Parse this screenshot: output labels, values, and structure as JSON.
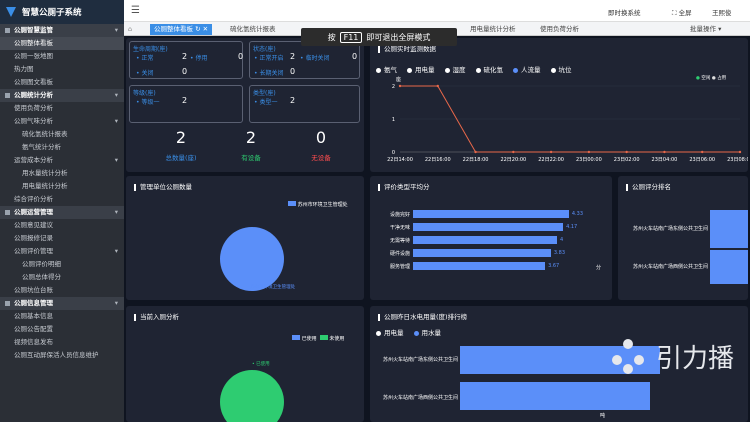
{
  "app": {
    "title": "智慧公厕子系统"
  },
  "sidebar": {
    "items": [
      {
        "label": "公厕智慧监管",
        "kind": "grp"
      },
      {
        "label": "公厕整体看板",
        "kind": "sub",
        "active": true
      },
      {
        "label": "公厕一张地图",
        "kind": "sub"
      },
      {
        "label": "热力图",
        "kind": "sub"
      },
      {
        "label": "公厕图文看板",
        "kind": "sub"
      },
      {
        "label": "公厕统计分析",
        "kind": "grp"
      },
      {
        "label": "使用负荷分析",
        "kind": "sub"
      },
      {
        "label": "公厕气味分析",
        "kind": "sub",
        "chev": true
      },
      {
        "label": "硫化氢统计报表",
        "kind": "l2"
      },
      {
        "label": "氨气统计分析",
        "kind": "l2"
      },
      {
        "label": "运营成本分析",
        "kind": "sub",
        "chev": true
      },
      {
        "label": "用水量统计分析",
        "kind": "l2"
      },
      {
        "label": "用电量统计分析",
        "kind": "l2"
      },
      {
        "label": "综合评价分析",
        "kind": "sub"
      },
      {
        "label": "公厕运营管理",
        "kind": "grp"
      },
      {
        "label": "公厕意见建议",
        "kind": "sub"
      },
      {
        "label": "公厕报修记录",
        "kind": "sub"
      },
      {
        "label": "公厕评价管理",
        "kind": "sub",
        "chev": true
      },
      {
        "label": "公厕评价明细",
        "kind": "l2"
      },
      {
        "label": "公厕总体得分",
        "kind": "l2"
      },
      {
        "label": "公厕坑位台账",
        "kind": "sub"
      },
      {
        "label": "公厕信息管理",
        "kind": "grp"
      },
      {
        "label": "公厕基本信息",
        "kind": "sub"
      },
      {
        "label": "公厕公告配置",
        "kind": "sub"
      },
      {
        "label": "视频信息发布",
        "kind": "sub"
      },
      {
        "label": "公厕互动屏保活人员信息维护",
        "kind": "sub"
      }
    ]
  },
  "topbar": {
    "system": "即时换系统",
    "fullscreen": "全屏",
    "user": "王熙俊"
  },
  "tabs": [
    {
      "label": "公厕整体看板",
      "active": true
    },
    {
      "label": "硫化氢统计报表"
    },
    {
      "label": "用电量统计分析"
    },
    {
      "label": "使用负荷分析"
    },
    {
      "label": "批量操作"
    }
  ],
  "fullscreen_tip": {
    "pre": "按",
    "key": "F11",
    "post": "即可退出全屏模式"
  },
  "status": {
    "lifecycle": {
      "title": "生命周期(座)",
      "normal_label": "正常",
      "normal": "2",
      "disabled_label": "停用",
      "disabled": "0",
      "closed_label": "关闭",
      "closed": "0"
    },
    "state": {
      "title": "状态(座)",
      "open_label": "正常开启",
      "open": "2",
      "temp_label": "临时关闭",
      "temp": "0",
      "long_label": "长期关闭",
      "long": "0"
    },
    "grade": {
      "title": "等级(座)",
      "g1_label": "等级一",
      "g1": "2"
    },
    "type": {
      "title": "类型(座)",
      "t1_label": "类型一",
      "t1": "2"
    },
    "totals": [
      {
        "value": "2",
        "label": "总数量(座)",
        "color": "#3a8ee6"
      },
      {
        "value": "2",
        "label": "有设备",
        "color": "#2ecc71"
      },
      {
        "value": "0",
        "label": "无设备",
        "color": "#ff4d4f"
      }
    ]
  },
  "panels": {
    "realtime": {
      "title": "公厕实时监测数据",
      "legend": [
        "氨气",
        "用电量",
        "湿度",
        "硫化氢",
        "人流量",
        "坑位"
      ],
      "legend_sel": "人流量",
      "mini_legend": [
        "空闲",
        "占用"
      ],
      "ylabel": "座"
    },
    "unit": {
      "title": "管理单位公厕数量",
      "legend": "苏州市环境卫生管理处",
      "slice_label": "苏州市环境卫生管理处"
    },
    "eval": {
      "title": "评价类型平均分",
      "unit": "分"
    },
    "rank": {
      "title": "公厕评分排名",
      "rows": [
        "苏州火车站南广场东侧公共卫生间",
        "苏州火车站南广场西侧公共卫生间"
      ]
    },
    "entry": {
      "title": "当前入厕分析",
      "legend": [
        "已使用",
        "未使用"
      ],
      "slice_label": "已使用"
    },
    "usage": {
      "title": "公厕昨日水电用量(度)排行榜",
      "legend": [
        "用电量",
        "用水量"
      ],
      "legend_sel": "用水量",
      "rows": [
        "苏州火车站南广场东侧公共卫生间",
        "苏州火车站南广场西侧公共卫生间"
      ],
      "unit": "吨"
    }
  },
  "watermark": {
    "text": "引力播"
  },
  "chart_data": [
    {
      "type": "line",
      "title": "公厕实时监测数据",
      "ylabel": "座",
      "x": [
        "22日14:00",
        "22日16:00",
        "22日18:00",
        "22日20:00",
        "22日22:00",
        "23日00:00",
        "23日02:00",
        "23日04:00",
        "23日06:00",
        "23日08:00"
      ],
      "series": [
        {
          "name": "人流量",
          "values": [
            2,
            2,
            0,
            0,
            0,
            0,
            0,
            0,
            0,
            0
          ]
        }
      ],
      "ylim": [
        0,
        2
      ]
    },
    {
      "type": "pie",
      "title": "管理单位公厕数量",
      "categories": [
        "苏州市环境卫生管理处"
      ],
      "values": [
        2
      ]
    },
    {
      "type": "bar",
      "title": "评价类型平均分",
      "categories": [
        "设施完好",
        "干净无味",
        "无需等待",
        "硬件设施",
        "服务管理"
      ],
      "values": [
        4.33,
        4.17,
        4.0,
        3.83,
        3.67
      ],
      "xlim": [
        0,
        5
      ]
    },
    {
      "type": "pie",
      "title": "当前入厕分析",
      "categories": [
        "已使用",
        "未使用"
      ],
      "values": [
        1,
        0
      ]
    },
    {
      "type": "bar",
      "title": "公厕昨日水电用量(度)排行榜",
      "categories": [
        "苏州火车站南广场东侧公共卫生间",
        "苏州火车站南广场西侧公共卫生间"
      ],
      "series": [
        {
          "name": "用水量",
          "values": [
            2.1,
            2.0
          ]
        }
      ]
    }
  ]
}
